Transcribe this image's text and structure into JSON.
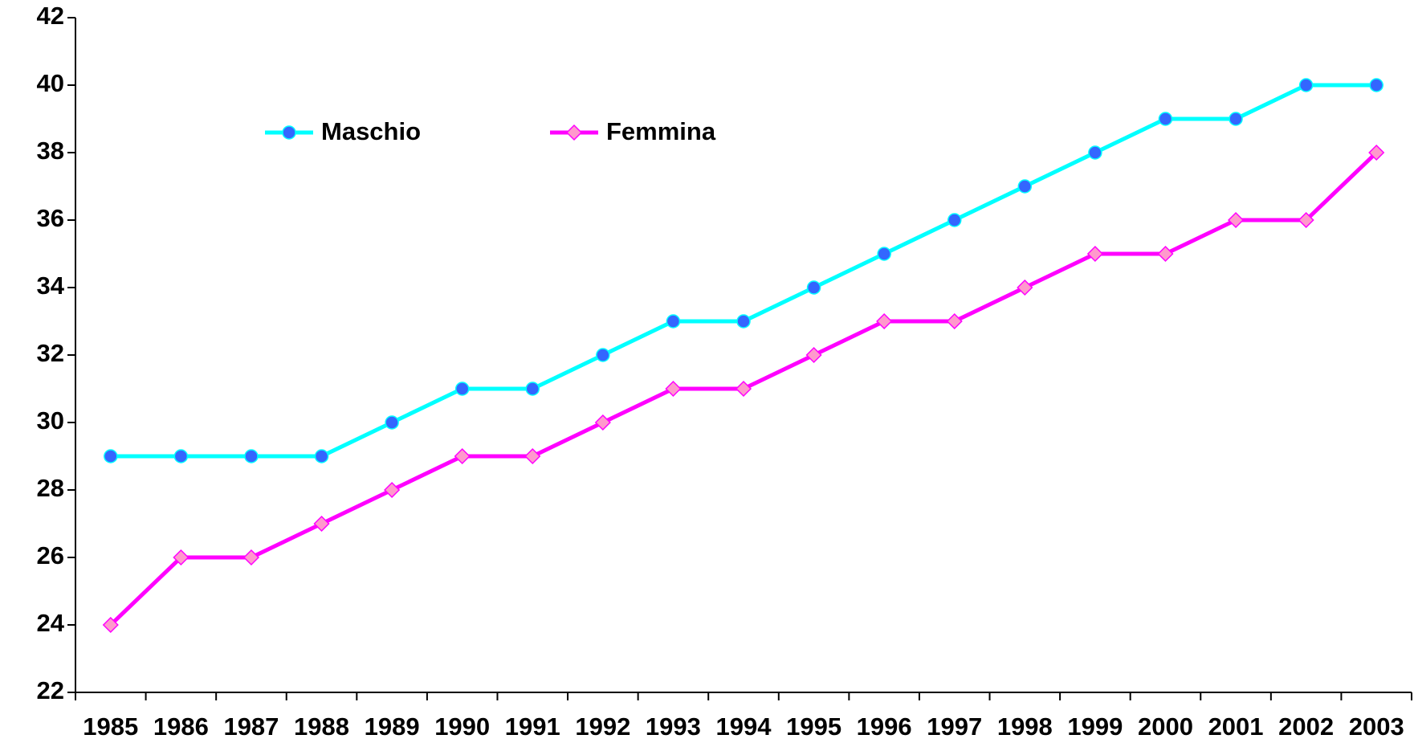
{
  "chart_data": {
    "type": "line",
    "categories": [
      "1985",
      "1986",
      "1987",
      "1988",
      "1989",
      "1990",
      "1991",
      "1992",
      "1993",
      "1994",
      "1995",
      "1996",
      "1997",
      "1998",
      "1999",
      "2000",
      "2001",
      "2002",
      "2003"
    ],
    "series": [
      {
        "name": "Maschio",
        "color": "#00ffff",
        "marker": "circle",
        "marker_color": "#3366ff",
        "values": [
          29,
          29,
          29,
          29,
          30,
          31,
          31,
          32,
          33,
          33,
          34,
          35,
          36,
          37,
          38,
          39,
          39,
          40,
          40
        ]
      },
      {
        "name": "Femmina",
        "color": "#ff00ff",
        "marker": "diamond",
        "marker_color": "#ff99cc",
        "values": [
          24,
          26,
          26,
          27,
          28,
          29,
          29,
          30,
          31,
          31,
          32,
          33,
          33,
          34,
          35,
          35,
          36,
          36,
          38
        ]
      }
    ],
    "ylim": [
      22,
      42
    ],
    "yticks": [
      22,
      24,
      26,
      28,
      30,
      32,
      34,
      36,
      38,
      40,
      42
    ],
    "grid": false,
    "legend": "top left"
  }
}
